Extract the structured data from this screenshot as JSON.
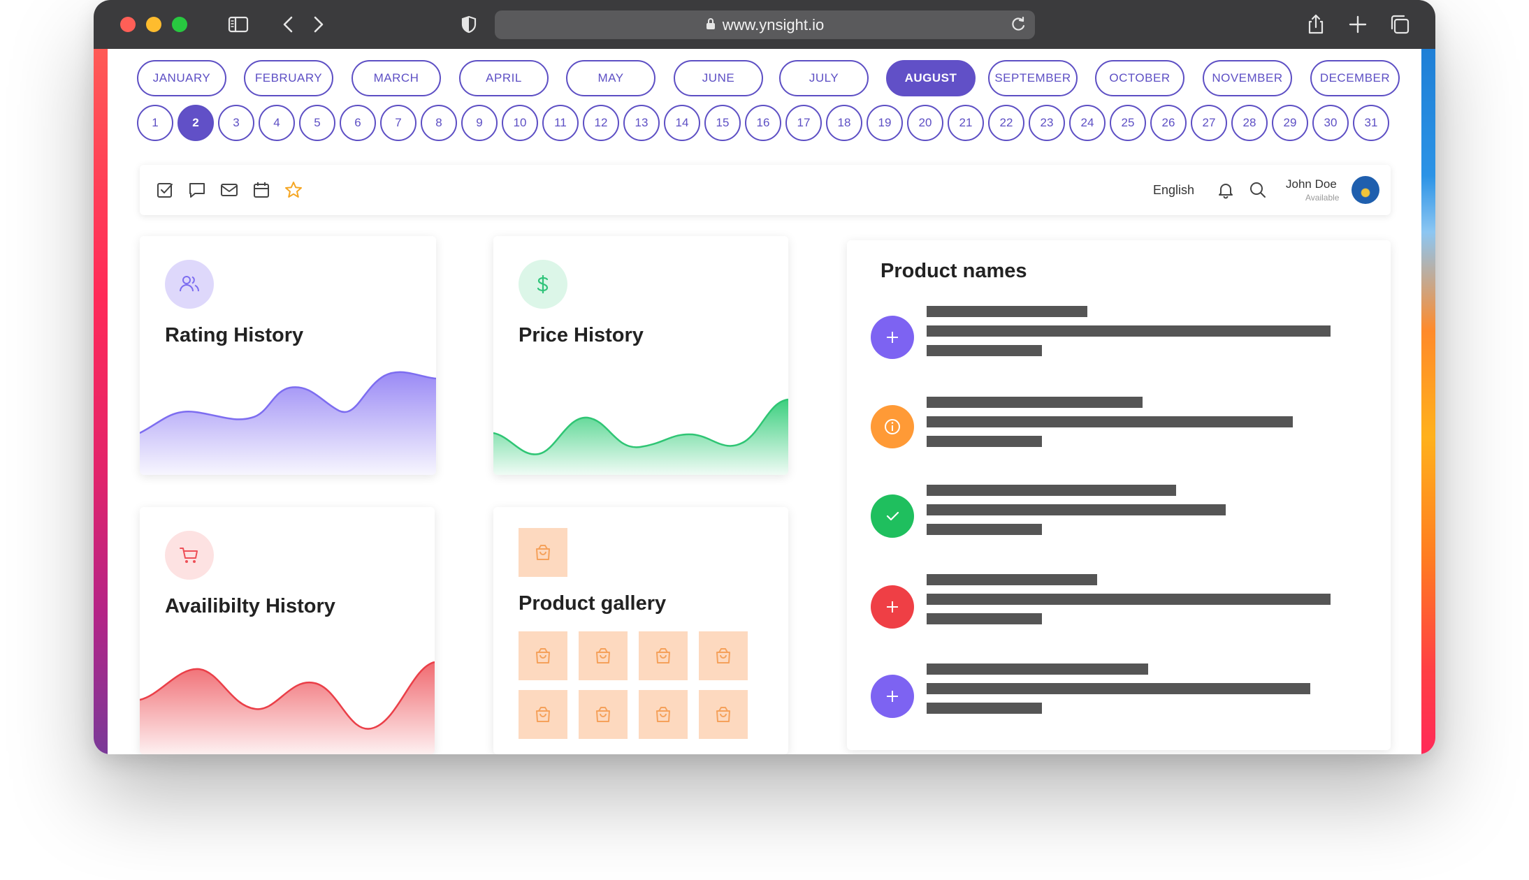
{
  "browser": {
    "url": "www.ynsight.io"
  },
  "calendar": {
    "months": [
      "JANUARY",
      "FEBRUARY",
      "MARCH",
      "APRIL",
      "MAY",
      "JUNE",
      "JULY",
      "AUGUST",
      "SEPTEMBER",
      "OCTOBER",
      "NOVEMBER",
      "DECEMBER"
    ],
    "active_month": "AUGUST",
    "days": [
      "1",
      "2",
      "3",
      "4",
      "5",
      "6",
      "7",
      "8",
      "9",
      "10",
      "11",
      "12",
      "13",
      "14",
      "15",
      "16",
      "17",
      "18",
      "19",
      "20",
      "21",
      "22",
      "23",
      "24",
      "25",
      "26",
      "27",
      "28",
      "29",
      "30",
      "31"
    ],
    "active_day": "2",
    "accent_color": "#6150c7"
  },
  "toolbar": {
    "icons": [
      "checkbox-icon",
      "chat-icon",
      "mail-icon",
      "calendar-icon",
      "star-icon"
    ],
    "language": "English",
    "user_name": "John Doe",
    "user_status": "Available"
  },
  "cards": {
    "rating": {
      "title": "Rating History",
      "icon": "users-icon",
      "color": "#8b7cf0"
    },
    "price": {
      "title": "Price History",
      "icon": "dollar-icon",
      "color": "#3ccf7f"
    },
    "availability": {
      "title": "Availibilty History",
      "icon": "cart-icon",
      "color": "#ee4f57"
    },
    "gallery": {
      "title": "Product gallery",
      "icon": "bag-icon",
      "color": "#f5a15b"
    }
  },
  "product_names": {
    "title": "Product names",
    "items": [
      {
        "icon": "plus-icon",
        "color": "#7d63f2"
      },
      {
        "icon": "info-icon",
        "color": "#ff9a36"
      },
      {
        "icon": "check-icon",
        "color": "#1fbf5e"
      },
      {
        "icon": "plus-icon",
        "color": "#ef3f45"
      },
      {
        "icon": "plus-icon",
        "color": "#7d63f2"
      }
    ]
  }
}
